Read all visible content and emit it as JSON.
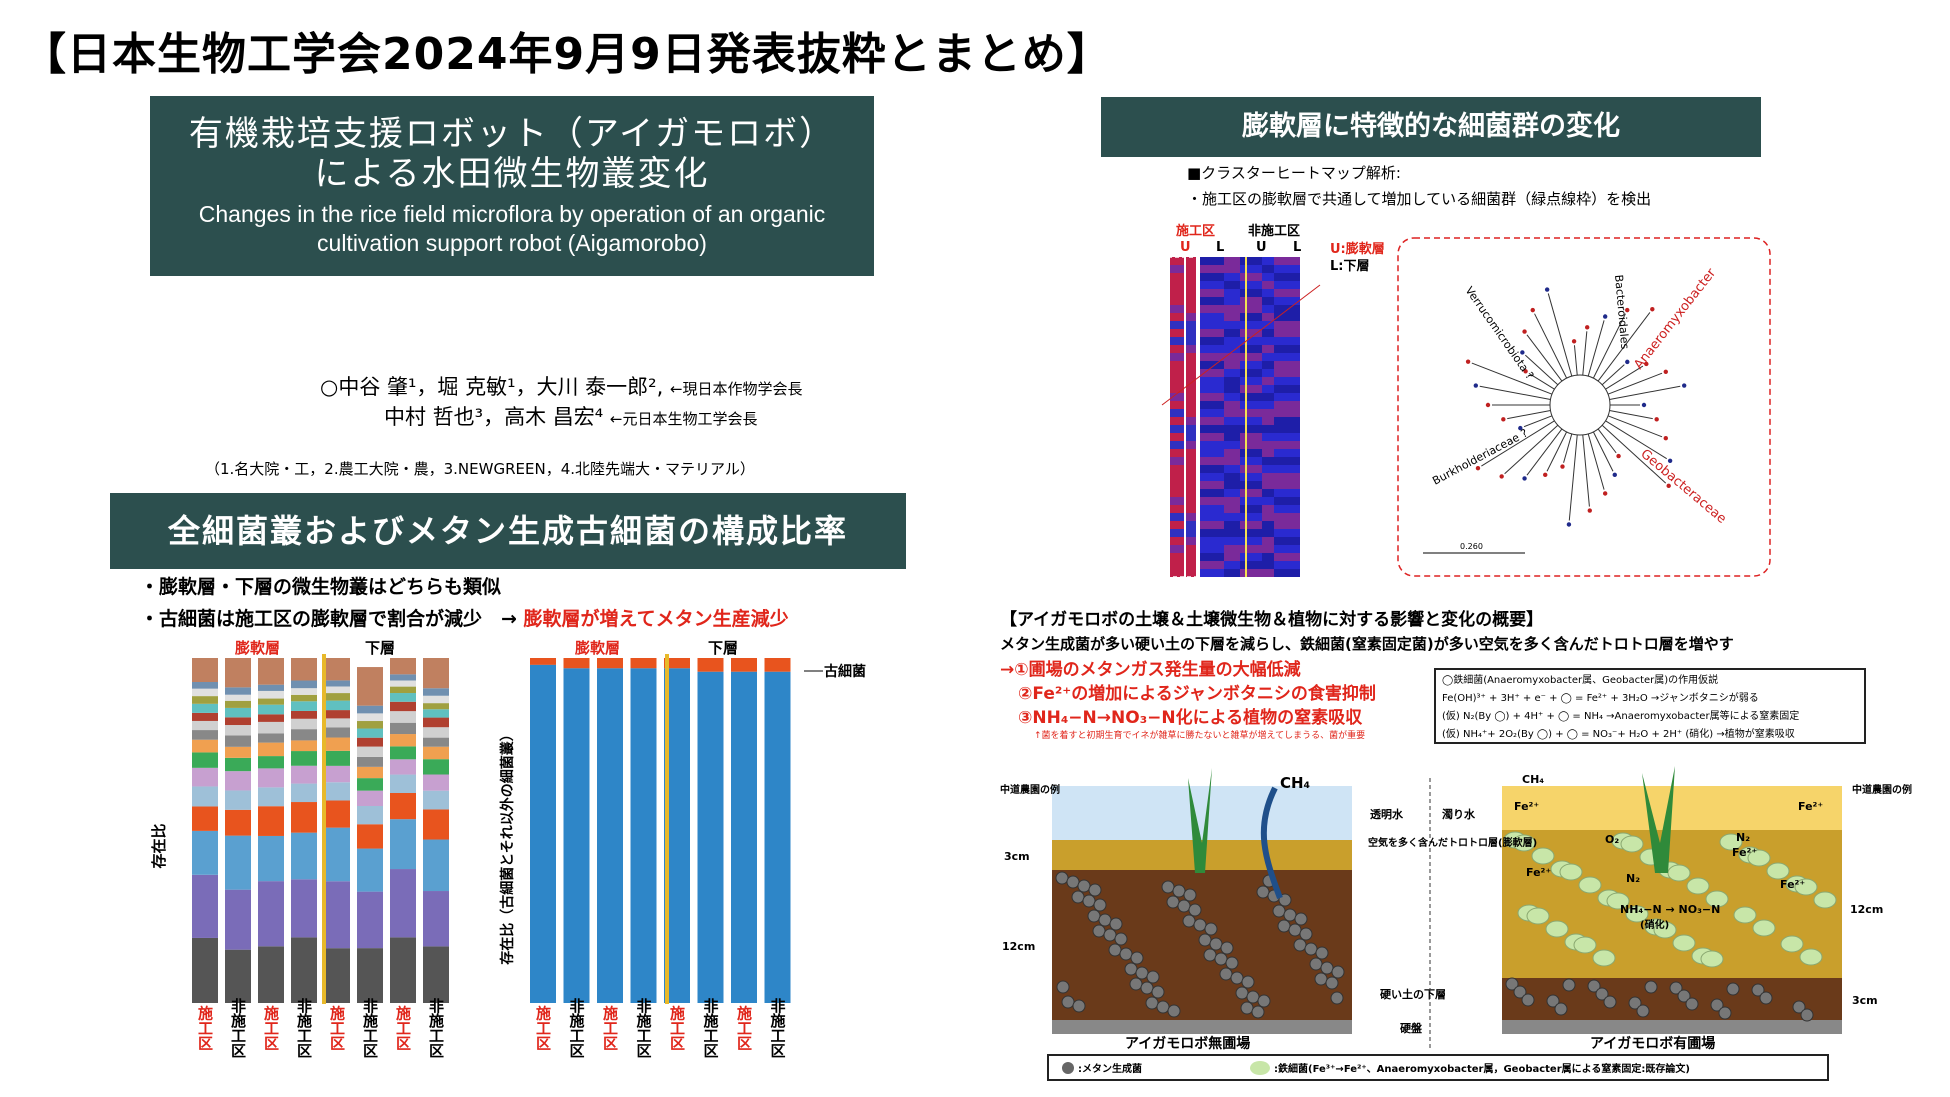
{
  "header": {
    "title": "【日本生物工学会2024年9月9日発表抜粋とまとめ】"
  },
  "title_box": {
    "jp_line1": "有機栽培支援ロボット（アイガモロボ）",
    "jp_line2": "による水田微生物叢変化",
    "en_line1": "Changes in the rice field microflora by operation of an organic",
    "en_line2": "cultivation support robot (Aigamorobo)"
  },
  "authors": {
    "line1": "○中谷 肇¹，堀 克敏¹，大川 泰一郎²,",
    "line1_note": "←現日本作物学会長",
    "line2": "中村 哲也³，高木 昌宏⁴",
    "line2_note": "←元日本生物工学会長",
    "affiliations": "（1.名大院・工，2.農工大院・農，3.NEWGREEN，4.北陸先端大・マテリアル）"
  },
  "section_left": {
    "title": "全細菌叢およびメタン生成古細菌の構成比率",
    "bullet1": "・膨軟層・下層の微生物叢はどちらも類似",
    "bullet2": "・古細菌は施工区の膨軟層で割合が減少　→",
    "bullet2_highlight": "膨軟層が増えてメタン生産減少"
  },
  "chart_left": {
    "top_label_1": "膨軟層",
    "top_label_2": "下層",
    "ylabel": "存在比",
    "x_labels": [
      "施工区",
      "非施工区",
      "施工区",
      "非施工区",
      "施工区",
      "非施工区",
      "施工区",
      "非施工区"
    ]
  },
  "chart_right": {
    "top_label_1": "膨軟層",
    "top_label_2": "下層",
    "ylabel": "存在比（古細菌とそれ以外の細菌叢）",
    "legend_archaea": "古細菌",
    "x_labels": [
      "施工区",
      "非施工区",
      "施工区",
      "非施工区",
      "施工区",
      "非施工区",
      "施工区",
      "非施工区"
    ]
  },
  "chart_data": [
    {
      "type": "bar",
      "title": "",
      "ylabel": "存在比",
      "categories": [
        "施工区",
        "非施工区",
        "施工区",
        "非施工区",
        "施工区",
        "非施工区",
        "施工区",
        "非施工区"
      ],
      "groups": [
        "膨軟層",
        "膨軟層",
        "膨軟層",
        "膨軟層",
        "下層",
        "下層",
        "下層",
        "下層"
      ],
      "stacked": true,
      "ylim": [
        0,
        1
      ]
    },
    {
      "type": "bar",
      "title": "",
      "ylabel": "存在比（古細菌とそれ以外の細菌叢）",
      "categories": [
        "施工区",
        "非施工区",
        "施工区",
        "非施工区",
        "施工区",
        "非施工区",
        "施工区",
        "非施工区"
      ],
      "stacked": true,
      "ylim": [
        0,
        1
      ],
      "series": [
        {
          "name": "古細菌",
          "color": "#e8541e",
          "values": [
            0.02,
            0.03,
            0.03,
            0.03,
            0.03,
            0.04,
            0.04,
            0.04
          ]
        },
        {
          "name": "",
          "color": "#2e86c8",
          "values": [
            0.98,
            0.97,
            0.97,
            0.97,
            0.97,
            0.96,
            0.96,
            0.96
          ]
        }
      ]
    }
  ],
  "section_right": {
    "title": "膨軟層に特徴的な細菌群の変化",
    "line1": "■クラスターヒートマップ解析:",
    "line2": "・施工区の膨軟層で共通して増加している細菌群（緑点線枠）を検出"
  },
  "heatmap": {
    "group1": "施工区",
    "group2": "非施工区",
    "col_u1": "U",
    "col_l1": "L",
    "col_u2": "U",
    "col_l2": "L",
    "legend_u": "U:膨軟層",
    "legend_l": "L:下層"
  },
  "tree": {
    "labels": [
      "Verrucomicrobiota ?",
      "Bacteroidales",
      "Anaeromyxobacter",
      "Burkholderiaceae ?",
      "Geobacteraceae"
    ],
    "scale": "0.260"
  },
  "summary": {
    "title": "【アイガモロボの土壌＆土壌微生物＆植物に対する影響と変化の概要】",
    "subtitle": "メタン生成菌が多い硬い土の下層を減らし、鉄細菌(窒素固定菌)が多い空気を多く含んだトロトロ層を増やす",
    "effect1": "→①圃場のメタンガス発生量の大幅低減",
    "effect2": "②Fe²⁺の増加によるジャンボタニシの食害抑制",
    "effect3": "③NH₄−N→NO₃−N化による植物の窒素吸収",
    "note": "↑菌を着すと初期生育でイネが雑草に勝たないと雑草が増えてしまうる、菌が重要",
    "hyp_title": "◯鉄細菌(Anaeromyxobacter属、Geobacter属)の作用仮説",
    "hyp1": "Fe(OH)³⁺ + 3H⁺ + e⁻ + ◯ = Fe²⁺ + 3H₂O →ジャンボタニシが弱る",
    "hyp2": "(仮) N₂(By ◯) + 4H⁺ + ◯ = NH₄ →Anaeromyxobacter属等による窒素固定",
    "hyp3": "(仮) NH₄⁺+ 2O₂(By ◯) + ◯ = NO₃⁻+ H₂O + 2H⁺ (硝化) →植物が窒素吸収"
  },
  "diagram": {
    "left_side": "中道農園の例",
    "right_side": "中道農園の例",
    "ch4": "CH₄",
    "clear_water": "透明水",
    "muddy_water": "濁り水",
    "toro_layer": "空気を多く含んだトロトロ層(膨軟層)",
    "hard_layer": "硬い土の下層",
    "hardpan": "硬盤",
    "depth_3cm": "3cm",
    "depth_12cm": "12cm",
    "depth_12cm_r": "12cm",
    "depth_3cm_r": "3cm",
    "left_caption": "アイガモロボ無圃場",
    "right_caption": "アイガモロボ有圃場",
    "fe": "Fe²⁺",
    "o2": "O₂",
    "n2": "N₂",
    "reaction": "NH₄−N → NO₃−N",
    "nitrification": "(硝化)",
    "legend_methane": ":メタン生成菌",
    "legend_iron": ":鉄細菌(Fe³⁺→Fe²⁺、Anaeromyxobacter属，Geobacter属による窒素固定:既存論文)"
  },
  "colors": {
    "bar_bg": "#2c4f4e",
    "accent_red": "#e0261b",
    "bar_blue": "#2e86c8",
    "archaea_orange": "#e8541e",
    "divider_gold": "#e8b92a"
  }
}
